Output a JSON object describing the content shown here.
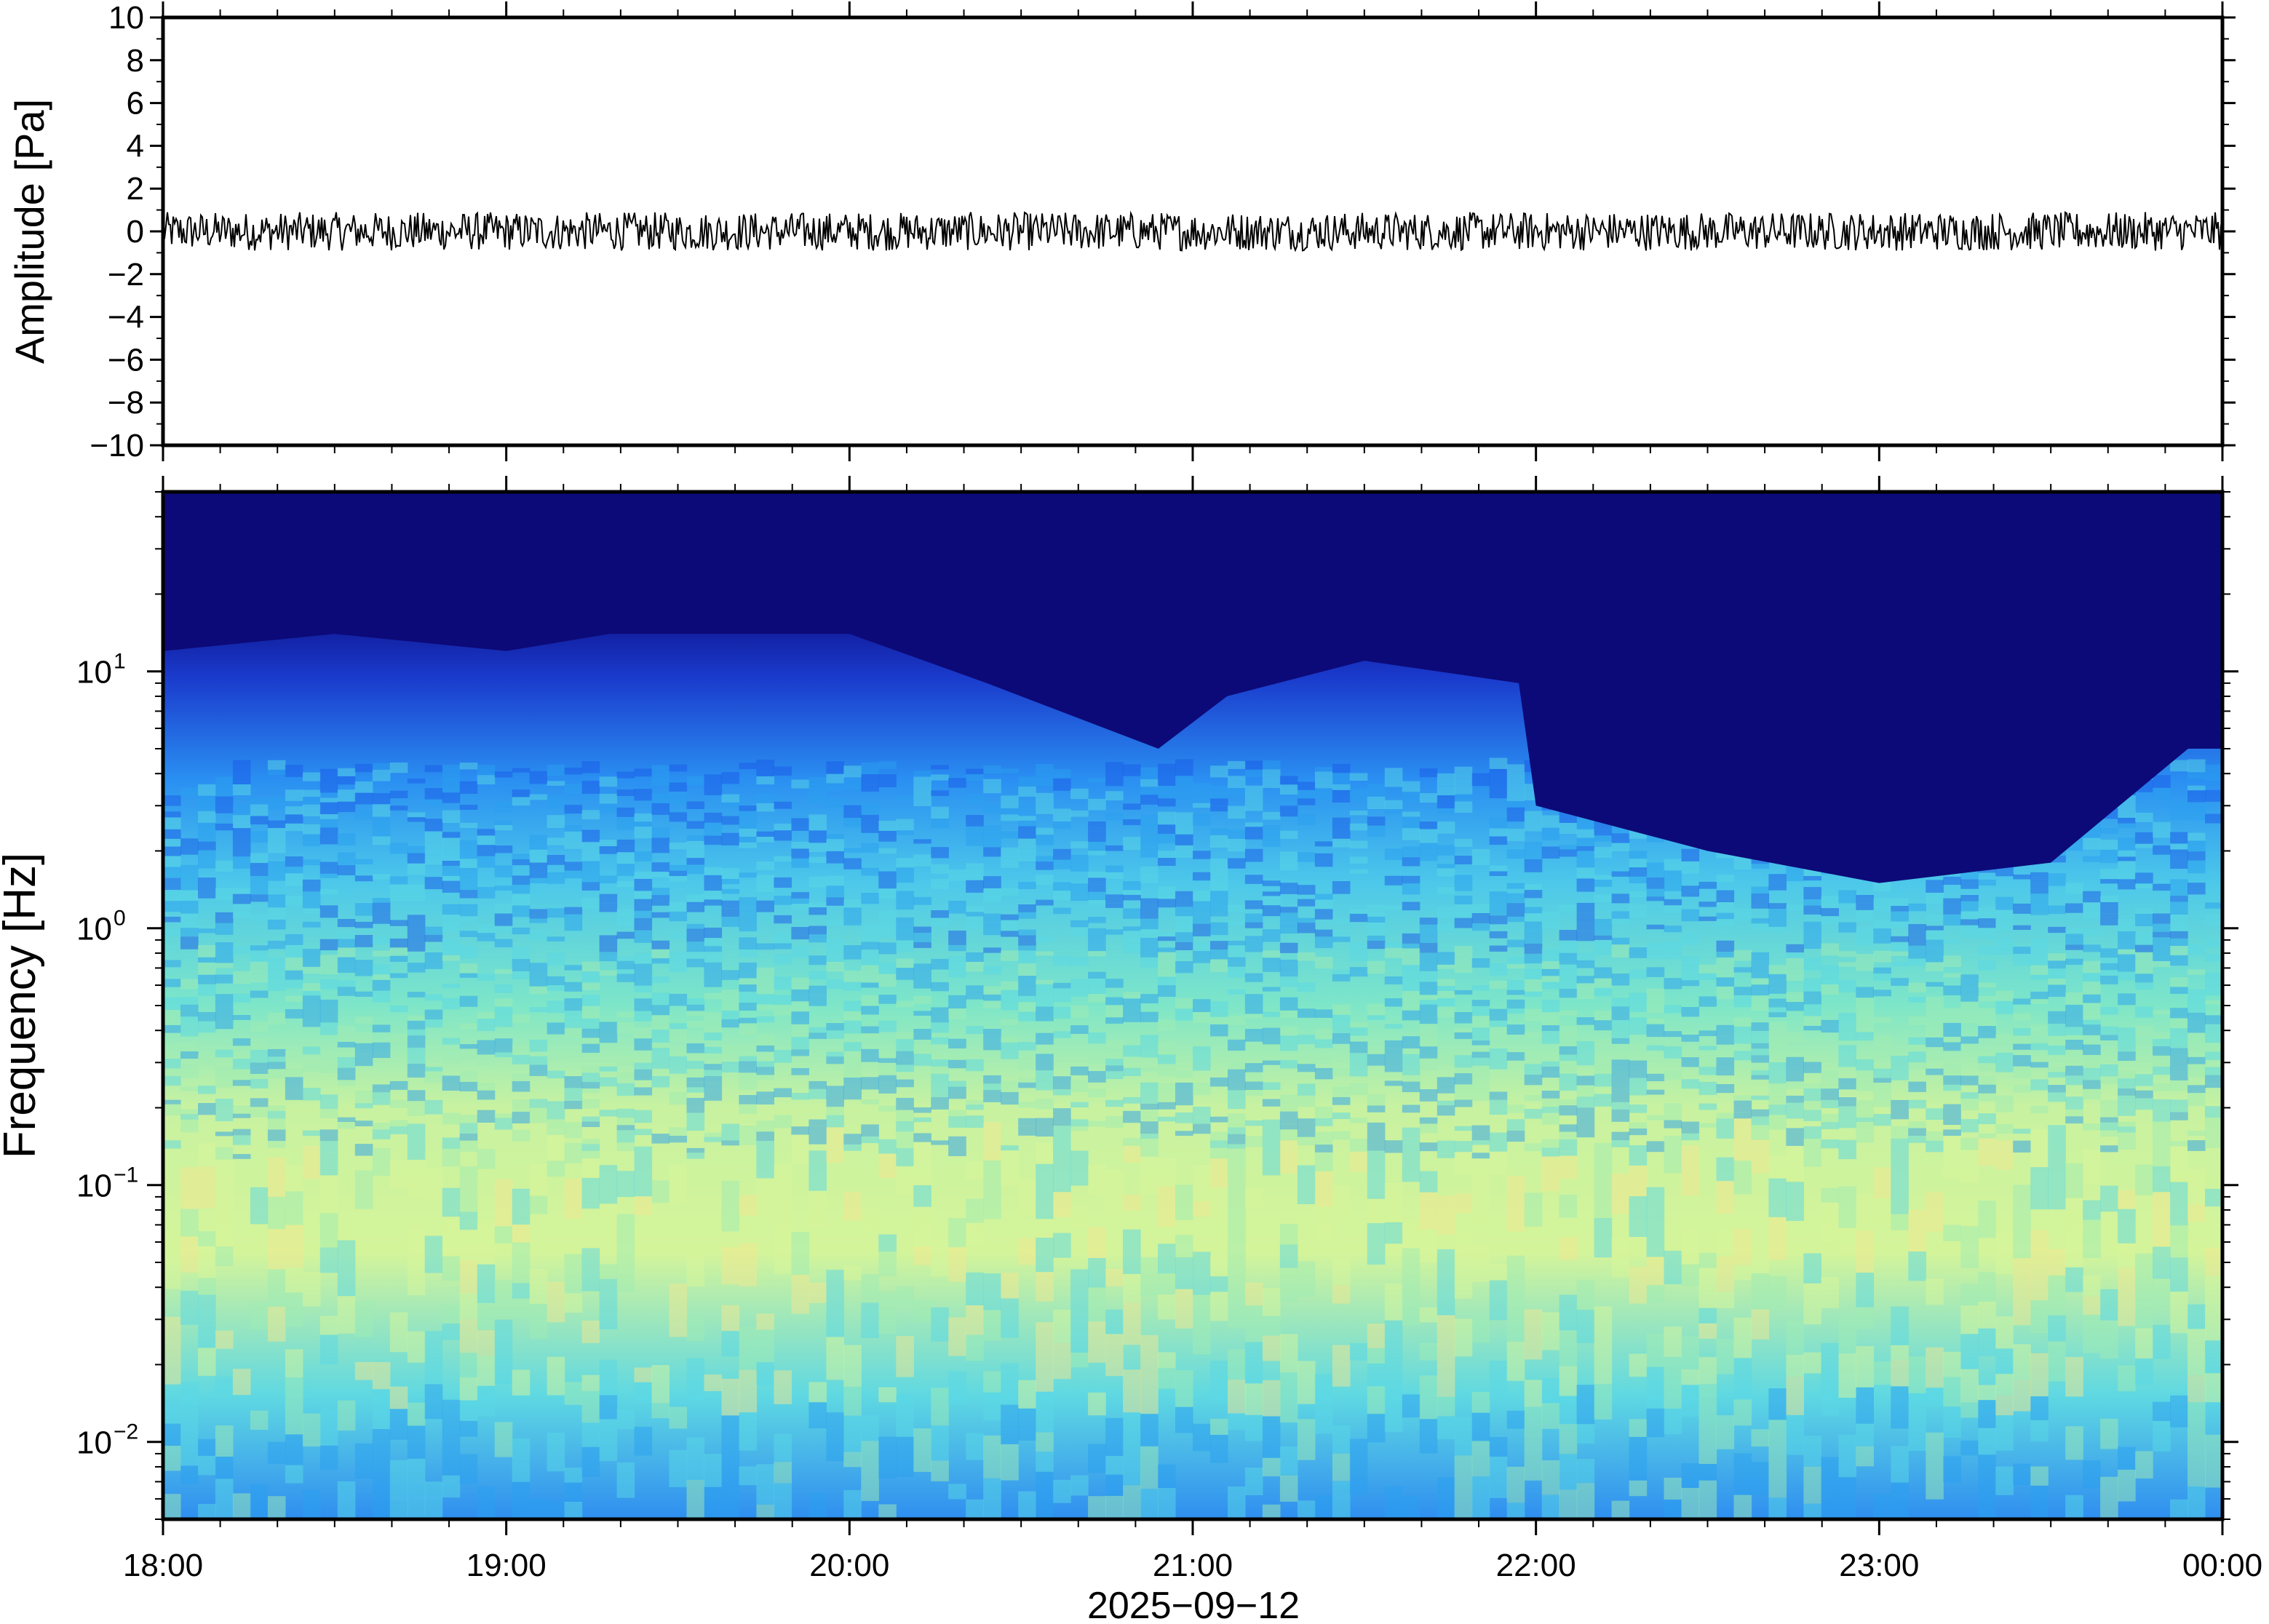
{
  "chart_data": [
    {
      "type": "line",
      "ylabel": "Amplitude [Pa]",
      "ylim": [
        -10,
        10
      ],
      "yticks": [
        {
          "value": 10,
          "label": "10"
        },
        {
          "value": 8,
          "label": "8"
        },
        {
          "value": 6,
          "label": "6"
        },
        {
          "value": 4,
          "label": "4"
        },
        {
          "value": 2,
          "label": "2"
        },
        {
          "value": 0,
          "label": "0"
        },
        {
          "value": -2,
          "label": "−2"
        },
        {
          "value": -4,
          "label": "−4"
        },
        {
          "value": -6,
          "label": "−6"
        },
        {
          "value": -8,
          "label": "−8"
        },
        {
          "value": -10,
          "label": "−10"
        }
      ],
      "xlim": [
        "18:00",
        "00:00"
      ],
      "series": [
        {
          "values_note_hidden": null,
          "color": "#000000",
          "baseline": 0,
          "max_abs": 0.3
        }
      ]
    },
    {
      "type": "heatmap",
      "xlabel": "2025−09−12",
      "ylabel": "Frequency [Hz]",
      "yscale": "log",
      "ylim": [
        0.005,
        50
      ],
      "yticks": [
        {
          "value": 10,
          "base": "10",
          "exp": "1"
        },
        {
          "value": 1,
          "base": "10",
          "exp": "0"
        },
        {
          "value": 0.1,
          "base": "10",
          "exp": "−1"
        },
        {
          "value": 0.01,
          "base": "10",
          "exp": "−2"
        }
      ],
      "xticks": [
        "18:00",
        "19:00",
        "20:00",
        "21:00",
        "22:00",
        "23:00",
        "00:00"
      ],
      "xlim_hours": [
        18,
        24
      ],
      "upper_edge_hz": [
        {
          "t": 18.0,
          "hz": 12
        },
        {
          "t": 18.5,
          "hz": 14
        },
        {
          "t": 19.0,
          "hz": 12
        },
        {
          "t": 19.3,
          "hz": 14
        },
        {
          "t": 20.0,
          "hz": 14
        },
        {
          "t": 20.4,
          "hz": 9
        },
        {
          "t": 20.9,
          "hz": 5
        },
        {
          "t": 21.1,
          "hz": 8
        },
        {
          "t": 21.5,
          "hz": 11
        },
        {
          "t": 21.95,
          "hz": 9
        },
        {
          "t": 22.0,
          "hz": 3
        },
        {
          "t": 22.5,
          "hz": 2
        },
        {
          "t": 23.0,
          "hz": 1.5
        },
        {
          "t": 23.5,
          "hz": 1.8
        },
        {
          "t": 23.9,
          "hz": 5
        }
      ],
      "colormap": [
        "#0a0a7a",
        "#1a1ab4",
        "#1a5ae8",
        "#2aa0f0",
        "#5ad8e6",
        "#a0ecb4",
        "#d8f69a",
        "#f2e890"
      ]
    }
  ]
}
